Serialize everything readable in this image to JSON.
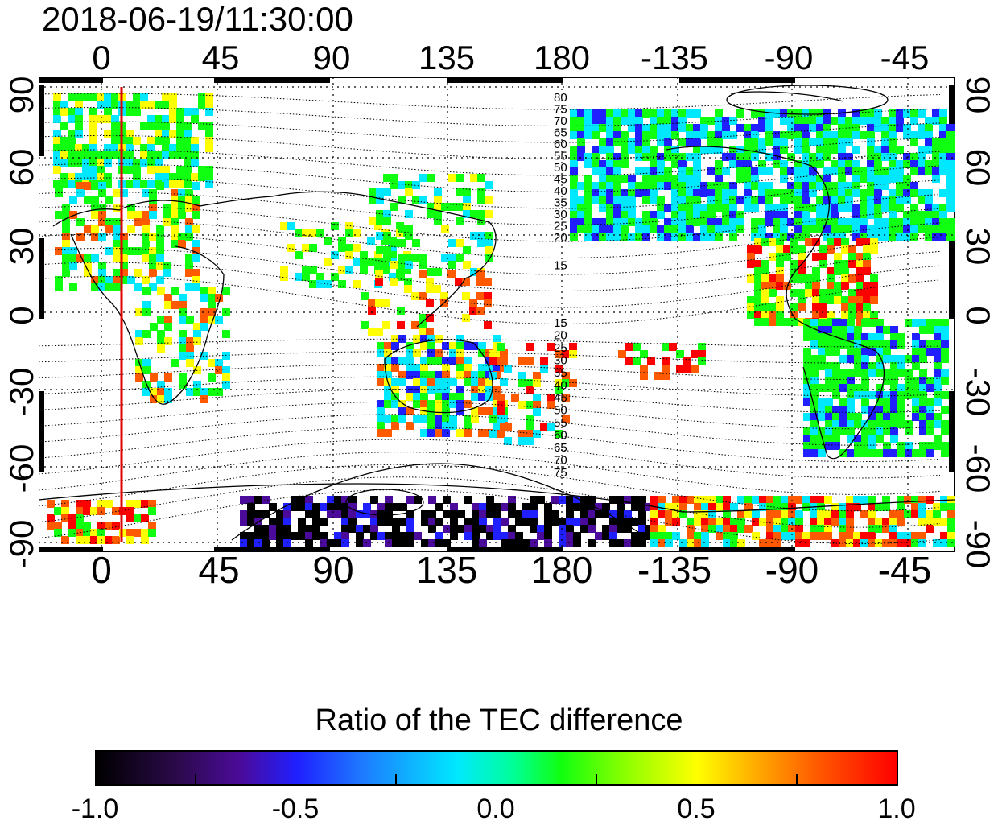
{
  "timestamp": "2018-06-19/11:30:00",
  "map": {
    "lon_ticks_top": [
      "0",
      "45",
      "90",
      "135",
      "180",
      "-135",
      "-90",
      "-45"
    ],
    "lon_ticks_bottom": [
      "0",
      "45",
      "90",
      "135",
      "180",
      "-135",
      "-90",
      "-45"
    ],
    "lat_ticks_left": [
      "90",
      "60",
      "30",
      "0",
      "-30",
      "-60",
      "-90"
    ],
    "lat_ticks_right": [
      "90",
      "60",
      "30",
      "0",
      "-30",
      "-60",
      "-90"
    ],
    "contour_labels_north": [
      "80",
      "75",
      "70",
      "65",
      "60",
      "55",
      "50",
      "45",
      "40",
      "35",
      "30",
      "25",
      "20",
      "15"
    ],
    "contour_labels_south": [
      "15",
      "20",
      "25",
      "30",
      "35",
      "40",
      "45",
      "50",
      "55",
      "60",
      "65",
      "70",
      "75"
    ],
    "marker_color": "#e00000",
    "coastline_color": "#000000"
  },
  "colorbar": {
    "title": "Ratio of the TEC difference",
    "ticks": [
      "-1.0",
      "-0.5",
      "0.0",
      "0.5",
      "1.0"
    ],
    "colors": [
      "#000000",
      "#4b0b9a",
      "#1f1fff",
      "#00e8ff",
      "#10ff10",
      "#ffff00",
      "#ff5a00",
      "#ff0000"
    ]
  }
}
